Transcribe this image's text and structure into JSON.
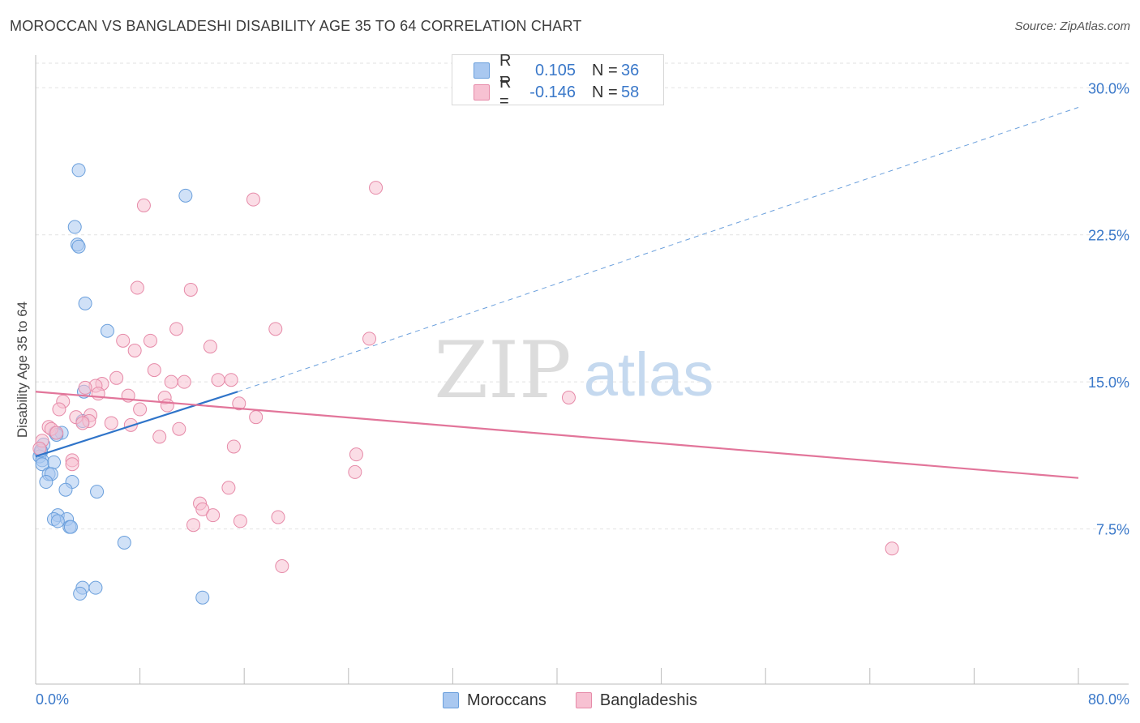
{
  "title": "MOROCCAN VS BANGLADESHI DISABILITY AGE 35 TO 64 CORRELATION CHART",
  "source": "Source: ZipAtlas.com",
  "watermark": {
    "zip": "ZIP",
    "atlas": "atlas"
  },
  "legend_stats": [
    {
      "r_label": "R =",
      "r_value": "0.105",
      "n_label": "N =",
      "n_value": "36",
      "color": "#a9c8f0",
      "border": "#6a9fdc"
    },
    {
      "r_label": "R =",
      "r_value": "-0.146",
      "n_label": "N =",
      "n_value": "58",
      "color": "#f7c1d2",
      "border": "#e68aa8"
    }
  ],
  "chart_data": {
    "type": "scatter",
    "title": "MOROCCAN VS BANGLADESHI DISABILITY AGE 35 TO 64 CORRELATION CHART",
    "xlabel": "",
    "ylabel": "Disability Age 35 to 64",
    "xlim": [
      0,
      80
    ],
    "ylim": [
      0,
      31.5
    ],
    "x_tick_labels": [
      "0.0%",
      "80.0%"
    ],
    "y_ticks": [
      7.5,
      15.0,
      22.5,
      30.0
    ],
    "y_tick_labels": [
      "7.5%",
      "15.0%",
      "22.5%",
      "30.0%"
    ],
    "series": [
      {
        "name": "Moroccans",
        "color": "#6a9fdc",
        "fill": "#a9c8f0",
        "points": [
          [
            3.3,
            25.8
          ],
          [
            11.5,
            24.5
          ],
          [
            3.0,
            22.9
          ],
          [
            3.2,
            22.0
          ],
          [
            3.3,
            21.9
          ],
          [
            3.8,
            19.0
          ],
          [
            5.5,
            17.6
          ],
          [
            3.7,
            14.5
          ],
          [
            3.6,
            13.0
          ],
          [
            1.5,
            12.4
          ],
          [
            2.0,
            12.4
          ],
          [
            1.6,
            12.3
          ],
          [
            0.6,
            11.8
          ],
          [
            0.4,
            11.4
          ],
          [
            0.3,
            11.2
          ],
          [
            0.5,
            11.0
          ],
          [
            1.4,
            10.9
          ],
          [
            0.5,
            10.8
          ],
          [
            1.0,
            10.3
          ],
          [
            1.2,
            10.3
          ],
          [
            0.8,
            9.9
          ],
          [
            2.8,
            9.9
          ],
          [
            2.3,
            9.5
          ],
          [
            4.7,
            9.4
          ],
          [
            1.7,
            8.2
          ],
          [
            1.4,
            8.0
          ],
          [
            2.4,
            8.0
          ],
          [
            1.7,
            7.9
          ],
          [
            2.6,
            7.6
          ],
          [
            2.7,
            7.6
          ],
          [
            6.8,
            6.8
          ],
          [
            3.6,
            4.5
          ],
          [
            4.6,
            4.5
          ],
          [
            3.4,
            4.2
          ],
          [
            12.8,
            4.0
          ],
          [
            0.4,
            11.5
          ]
        ],
        "trend": {
          "x": [
            0,
            15.5
          ],
          "y": [
            11.2,
            14.5
          ],
          "dashed_extension": {
            "x": [
              15.5,
              80
            ],
            "y": [
              14.5,
              29.0
            ]
          }
        }
      },
      {
        "name": "Bangladeshis",
        "color": "#e68aa8",
        "fill": "#f7c1d2",
        "points": [
          [
            26.1,
            24.9
          ],
          [
            16.7,
            24.3
          ],
          [
            8.3,
            24.0
          ],
          [
            7.8,
            19.8
          ],
          [
            11.9,
            19.7
          ],
          [
            18.4,
            17.7
          ],
          [
            10.8,
            17.7
          ],
          [
            25.6,
            17.2
          ],
          [
            8.8,
            17.1
          ],
          [
            6.7,
            17.1
          ],
          [
            13.4,
            16.8
          ],
          [
            7.6,
            16.6
          ],
          [
            9.1,
            15.6
          ],
          [
            6.2,
            15.2
          ],
          [
            15.0,
            15.1
          ],
          [
            14.0,
            15.1
          ],
          [
            10.4,
            15.0
          ],
          [
            11.4,
            15.0
          ],
          [
            5.1,
            14.9
          ],
          [
            4.6,
            14.8
          ],
          [
            3.8,
            14.7
          ],
          [
            4.8,
            14.4
          ],
          [
            7.1,
            14.3
          ],
          [
            9.9,
            14.2
          ],
          [
            40.9,
            14.2
          ],
          [
            2.1,
            14.0
          ],
          [
            15.6,
            13.9
          ],
          [
            10.1,
            13.8
          ],
          [
            8.0,
            13.6
          ],
          [
            1.8,
            13.6
          ],
          [
            4.2,
            13.3
          ],
          [
            3.1,
            13.2
          ],
          [
            16.9,
            13.2
          ],
          [
            4.1,
            13.0
          ],
          [
            3.6,
            12.9
          ],
          [
            5.8,
            12.9
          ],
          [
            7.3,
            12.8
          ],
          [
            1.0,
            12.7
          ],
          [
            1.2,
            12.6
          ],
          [
            11.0,
            12.6
          ],
          [
            1.6,
            12.4
          ],
          [
            9.5,
            12.2
          ],
          [
            0.5,
            12.0
          ],
          [
            15.2,
            11.7
          ],
          [
            0.3,
            11.6
          ],
          [
            24.6,
            11.3
          ],
          [
            2.8,
            11.0
          ],
          [
            2.8,
            10.8
          ],
          [
            24.5,
            10.4
          ],
          [
            14.8,
            9.6
          ],
          [
            12.6,
            8.8
          ],
          [
            12.8,
            8.5
          ],
          [
            13.6,
            8.2
          ],
          [
            18.6,
            8.1
          ],
          [
            15.7,
            7.9
          ],
          [
            12.1,
            7.7
          ],
          [
            65.7,
            6.5
          ],
          [
            18.9,
            5.6
          ]
        ],
        "trend": {
          "x": [
            0,
            80
          ],
          "y": [
            14.5,
            10.1
          ]
        }
      }
    ]
  }
}
